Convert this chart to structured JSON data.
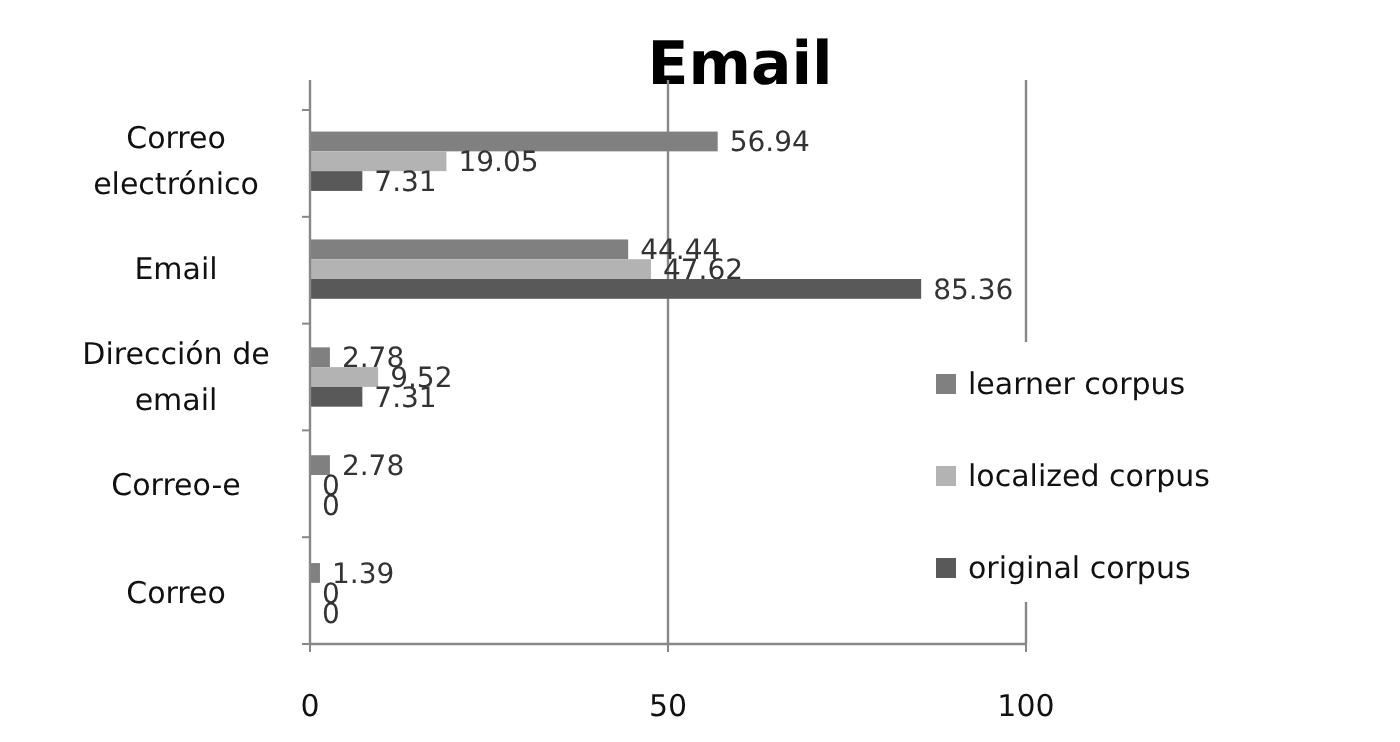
{
  "chart_data": {
    "type": "bar",
    "orientation": "horizontal",
    "title": "Email",
    "categories": [
      "Correo electrónico",
      "Email",
      "Dirección de email",
      "Correo-e",
      "Correo"
    ],
    "series": [
      {
        "name": "learner corpus",
        "color": "#808080",
        "values": [
          56.94,
          44.44,
          2.78,
          2.78,
          1.39
        ]
      },
      {
        "name": "localized corpus",
        "color": "#b3b3b3",
        "values": [
          19.05,
          47.62,
          9.52,
          0,
          0
        ]
      },
      {
        "name": "original corpus",
        "color": "#595959",
        "values": [
          7.31,
          85.36,
          7.31,
          0,
          0
        ]
      }
    ],
    "xlim": [
      0,
      100
    ],
    "xticks": [
      0,
      50,
      100
    ],
    "grid": "x",
    "legend": "right",
    "data_labels": true
  }
}
